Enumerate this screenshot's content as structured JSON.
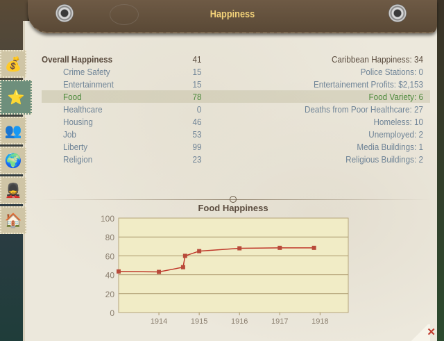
{
  "window": {
    "title": "Happiness"
  },
  "tabs": [
    {
      "icon": "money-icon"
    },
    {
      "icon": "thumbs-up-star-icon",
      "active": true
    },
    {
      "icon": "people-icon"
    },
    {
      "icon": "globe-icon"
    },
    {
      "icon": "soldier-icon"
    },
    {
      "icon": "house-icon"
    }
  ],
  "overall": {
    "label": "Overall Happiness",
    "value": "41"
  },
  "categories": [
    {
      "label": "Crime Safety",
      "value": "15"
    },
    {
      "label": "Entertainment",
      "value": "15"
    },
    {
      "label": "Food",
      "value": "78",
      "selected": true
    },
    {
      "label": "Healthcare",
      "value": "0"
    },
    {
      "label": "Housing",
      "value": "46"
    },
    {
      "label": "Job",
      "value": "53"
    },
    {
      "label": "Liberty",
      "value": "99"
    },
    {
      "label": "Religion",
      "value": "23"
    }
  ],
  "stats": [
    "Caribbean Happiness: 34",
    "Police Stations: 0",
    "Entertainement Profits: $2,153",
    "Food Variety: 6",
    "Deaths from Poor Healthcare: 27",
    "Homeless: 10",
    "Unemployed: 2",
    "Media Buildings: 1",
    "Religious Buildings: 2"
  ],
  "colors": {
    "selected": "#4d8a3c",
    "text": "#6f8497",
    "heading": "#5a4b3e",
    "line": "#c0392b",
    "plot_bg": "#f1ecc6"
  },
  "chart_data": {
    "type": "line",
    "title": "Food Happiness",
    "xlim": [
      1913.0,
      1918.7
    ],
    "ylim": [
      0,
      100
    ],
    "x_ticks": [
      "1914",
      "1915",
      "1916",
      "1917",
      "1918"
    ],
    "y_ticks": [
      "0",
      "20",
      "40",
      "60",
      "80",
      "100"
    ],
    "grid": true,
    "x": [
      1913.0,
      1914.0,
      1914.6,
      1914.65,
      1915.0,
      1916.0,
      1917.0,
      1917.85
    ],
    "y": [
      43.5,
      43,
      48,
      60,
      65,
      68,
      68.5,
      68.5
    ]
  },
  "close_icon": "close-x-icon"
}
